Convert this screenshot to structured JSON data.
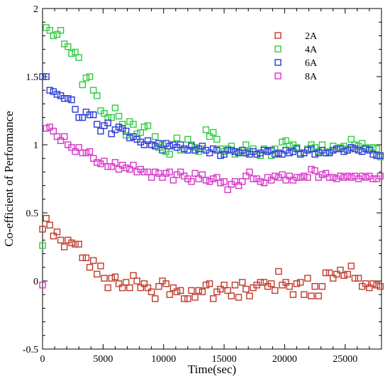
{
  "chart_data": {
    "type": "scatter",
    "title": "",
    "xlabel": "Time(sec)",
    "ylabel": "Co-efficient of Performance",
    "xlim": [
      0,
      28000
    ],
    "ylim": [
      -0.5,
      2
    ],
    "xticks": [
      0,
      5000,
      10000,
      15000,
      20000,
      25000
    ],
    "yticks": [
      -0.5,
      0,
      0.5,
      1,
      1.5,
      2
    ],
    "ytick_labels": [
      "-0.5",
      "0",
      "0.5",
      "1",
      "1.5",
      "2"
    ],
    "xtick_labels": [
      "0",
      "5000",
      "10000",
      "15000",
      "20000",
      "25000"
    ],
    "grid": false,
    "legend_position": "top-right",
    "marker": "open-square",
    "series": [
      {
        "name": "2A",
        "color": "#c0392b",
        "x": [
          0,
          300,
          600,
          900,
          1200,
          1500,
          1800,
          2100,
          2400,
          2700,
          3000,
          3300,
          3600,
          3900,
          4200,
          4500,
          4800,
          5100,
          5400,
          5700,
          6000,
          6300,
          6600,
          6900,
          7200,
          7500,
          7800,
          8100,
          8400,
          8700,
          9000,
          9300,
          9600,
          9900,
          10200,
          10500,
          10800,
          11100,
          11400,
          11700,
          12000,
          12300,
          12600,
          12900,
          13200,
          13500,
          13800,
          14100,
          14400,
          14700,
          15000,
          15300,
          15600,
          15900,
          16200,
          16500,
          16800,
          17100,
          17400,
          17700,
          18000,
          18300,
          18600,
          18900,
          19200,
          19500,
          19800,
          20100,
          20400,
          20700,
          21000,
          21300,
          21600,
          21900,
          22200,
          22500,
          22800,
          23100,
          23400,
          23700,
          24000,
          24300,
          24600,
          24900,
          25200,
          25500,
          25800,
          26100,
          26400,
          26700,
          27000,
          27300,
          27600,
          27900
        ],
        "y": [
          0.38,
          0.46,
          0.41,
          0.33,
          0.36,
          0.3,
          0.25,
          0.3,
          0.28,
          0.27,
          0.27,
          0.17,
          0.17,
          0.1,
          0.15,
          0.05,
          0.11,
          0.02,
          -0.05,
          0.02,
          0.03,
          -0.02,
          -0.05,
          -0.01,
          -0.05,
          0.04,
          0.0,
          -0.05,
          -0.02,
          -0.05,
          -0.08,
          -0.13,
          -0.04,
          0.0,
          -0.02,
          -0.1,
          -0.05,
          -0.08,
          -0.07,
          -0.13,
          -0.13,
          -0.07,
          -0.12,
          -0.07,
          -0.08,
          -0.03,
          -0.02,
          -0.13,
          -0.08,
          -0.06,
          -0.03,
          -0.07,
          -0.11,
          -0.03,
          -0.12,
          -0.01,
          -0.06,
          -0.11,
          -0.05,
          -0.03,
          -0.01,
          -0.01,
          -0.04,
          -0.02,
          -0.07,
          0.07,
          -0.03,
          -0.01,
          -0.04,
          -0.1,
          -0.02,
          -0.01,
          -0.1,
          0.02,
          -0.11,
          -0.04,
          -0.11,
          -0.04,
          0.06,
          0.06,
          0.02,
          0.05,
          0.08,
          0.04,
          0.05,
          0.11,
          0.02,
          0.02,
          -0.04,
          -0.02,
          -0.05,
          -0.02,
          -0.03,
          -0.04
        ]
      },
      {
        "name": "4A",
        "color": "#2ecc40",
        "x": [
          0,
          300,
          600,
          900,
          1200,
          1500,
          1800,
          2100,
          2400,
          2700,
          3000,
          3300,
          3600,
          3900,
          4200,
          4500,
          4800,
          5100,
          5400,
          5700,
          6000,
          6300,
          6600,
          6900,
          7200,
          7500,
          7800,
          8100,
          8400,
          8700,
          9000,
          9300,
          9600,
          9900,
          10200,
          10500,
          10800,
          11100,
          11400,
          11700,
          12000,
          12300,
          12600,
          12900,
          13200,
          13500,
          13800,
          14100,
          14400,
          14700,
          15000,
          15300,
          15600,
          15900,
          16200,
          16500,
          16800,
          17100,
          17400,
          17700,
          18000,
          18300,
          18600,
          18900,
          19200,
          19500,
          19800,
          20100,
          20400,
          20700,
          21000,
          21300,
          21600,
          21900,
          22200,
          22500,
          22800,
          23100,
          23400,
          23700,
          24000,
          24300,
          24600,
          24900,
          25200,
          25500,
          25800,
          26100,
          26400,
          26700,
          27000,
          27300,
          27600,
          27900
        ],
        "y": [
          0.26,
          1.86,
          1.84,
          1.8,
          1.81,
          1.84,
          1.74,
          1.72,
          1.67,
          1.68,
          1.64,
          1.44,
          1.49,
          1.5,
          1.4,
          1.36,
          1.25,
          1.23,
          1.2,
          1.2,
          1.27,
          1.21,
          1.15,
          1.07,
          1.17,
          1.15,
          1.08,
          1.09,
          1.13,
          1.14,
          1.0,
          1.06,
          0.98,
          1.0,
          0.95,
          0.93,
          1.0,
          1.05,
          0.96,
          0.97,
          1.04,
          1.0,
          0.98,
          0.95,
          0.97,
          1.11,
          1.06,
          1.09,
          1.04,
          0.97,
          0.95,
          0.97,
          0.99,
          0.93,
          0.95,
          0.94,
          1.0,
          0.95,
          0.97,
          0.93,
          0.92,
          0.97,
          0.96,
          0.92,
          0.97,
          0.93,
          1.02,
          1.03,
          0.99,
          1.0,
          0.98,
          0.94,
          0.94,
          0.97,
          1.0,
          0.98,
          0.95,
          1.0,
          0.94,
          0.95,
          0.99,
          0.97,
          0.98,
          0.99,
          0.97,
          1.04,
          1.0,
          0.99,
          1.01,
          0.98,
          0.97,
          0.98,
          0.97,
          0.91
        ]
      },
      {
        "name": "6A",
        "color": "#2737d6",
        "x": [
          0,
          300,
          600,
          900,
          1200,
          1500,
          1800,
          2100,
          2400,
          2700,
          3000,
          3300,
          3600,
          3900,
          4200,
          4500,
          4800,
          5100,
          5400,
          5700,
          6000,
          6300,
          6600,
          6900,
          7200,
          7500,
          7800,
          8100,
          8400,
          8700,
          9000,
          9300,
          9600,
          9900,
          10200,
          10500,
          10800,
          11100,
          11400,
          11700,
          12000,
          12300,
          12600,
          12900,
          13200,
          13500,
          13800,
          14100,
          14400,
          14700,
          15000,
          15300,
          15600,
          15900,
          16200,
          16500,
          16800,
          17100,
          17400,
          17700,
          18000,
          18300,
          18600,
          18900,
          19200,
          19500,
          19800,
          20100,
          20400,
          20700,
          21000,
          21300,
          21600,
          21900,
          22200,
          22500,
          22800,
          23100,
          23400,
          23700,
          24000,
          24300,
          24600,
          24900,
          25200,
          25500,
          25800,
          26100,
          26400,
          26700,
          27000,
          27300,
          27600,
          27900
        ],
        "y": [
          1.5,
          1.5,
          1.4,
          1.39,
          1.37,
          1.36,
          1.34,
          1.34,
          1.33,
          1.26,
          1.2,
          1.2,
          1.24,
          1.22,
          1.22,
          1.15,
          1.1,
          1.14,
          1.16,
          1.08,
          1.11,
          1.13,
          1.12,
          1.1,
          1.05,
          1.06,
          1.04,
          1.02,
          1.0,
          1.03,
          1.0,
          0.99,
          1.01,
          0.96,
          1.01,
          0.99,
          1.0,
          0.98,
          1.0,
          0.97,
          0.96,
          0.99,
          0.96,
          0.97,
          0.99,
          0.96,
          0.94,
          0.97,
          0.96,
          0.92,
          0.93,
          0.96,
          0.96,
          0.95,
          0.94,
          0.96,
          0.94,
          0.93,
          0.95,
          0.93,
          0.94,
          0.96,
          0.95,
          0.96,
          0.93,
          0.94,
          0.93,
          0.96,
          0.94,
          0.95,
          0.97,
          0.93,
          0.94,
          0.96,
          0.97,
          0.93,
          0.94,
          0.96,
          0.94,
          0.94,
          0.96,
          0.97,
          0.97,
          0.95,
          0.96,
          0.98,
          0.97,
          0.96,
          0.95,
          0.97,
          0.96,
          0.93,
          0.92,
          0.92
        ]
      },
      {
        "name": "8A",
        "color": "#d633c8",
        "x": [
          0,
          300,
          600,
          900,
          1200,
          1500,
          1800,
          2100,
          2400,
          2700,
          3000,
          3300,
          3600,
          3900,
          4200,
          4500,
          4800,
          5100,
          5400,
          5700,
          6000,
          6300,
          6600,
          6900,
          7200,
          7500,
          7800,
          8100,
          8400,
          8700,
          9000,
          9300,
          9600,
          9900,
          10200,
          10500,
          10800,
          11100,
          11400,
          11700,
          12000,
          12300,
          12600,
          12900,
          13200,
          13500,
          13800,
          14100,
          14400,
          14700,
          15000,
          15300,
          15600,
          15900,
          16200,
          16500,
          16800,
          17100,
          17400,
          17700,
          18000,
          18300,
          18600,
          18900,
          19200,
          19500,
          19800,
          20100,
          20400,
          20700,
          21000,
          21300,
          21600,
          21900,
          22200,
          22500,
          22800,
          23100,
          23400,
          23700,
          24000,
          24300,
          24600,
          24900,
          25200,
          25500,
          25800,
          26100,
          26400,
          26700,
          27000,
          27300,
          27600,
          27900
        ],
        "y": [
          -0.03,
          1.12,
          1.13,
          1.1,
          1.06,
          1.03,
          1.06,
          1.0,
          0.98,
          0.95,
          0.98,
          0.94,
          0.94,
          0.95,
          0.9,
          0.87,
          0.86,
          0.88,
          0.84,
          0.84,
          0.87,
          0.82,
          0.85,
          0.83,
          0.82,
          0.85,
          0.8,
          0.82,
          0.8,
          0.8,
          0.76,
          0.8,
          0.79,
          0.76,
          0.79,
          0.8,
          0.74,
          0.78,
          0.8,
          0.77,
          0.75,
          0.73,
          0.79,
          0.75,
          0.78,
          0.74,
          0.73,
          0.75,
          0.76,
          0.72,
          0.73,
          0.67,
          0.71,
          0.73,
          0.7,
          0.73,
          0.77,
          0.8,
          0.75,
          0.75,
          0.73,
          0.72,
          0.76,
          0.74,
          0.77,
          0.76,
          0.78,
          0.74,
          0.77,
          0.74,
          0.76,
          0.76,
          0.77,
          0.76,
          0.82,
          0.81,
          0.76,
          0.78,
          0.79,
          0.76,
          0.76,
          0.75,
          0.77,
          0.76,
          0.77,
          0.76,
          0.77,
          0.75,
          0.77,
          0.76,
          0.77,
          0.75,
          0.75,
          0.77
        ]
      }
    ]
  }
}
